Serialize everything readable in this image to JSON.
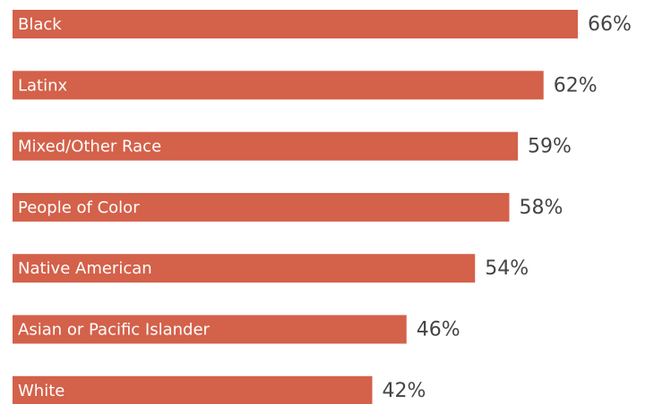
{
  "chart_data": {
    "type": "bar",
    "orientation": "horizontal",
    "categories": [
      "Black",
      "Latinx",
      "Mixed/Other Race",
      "People of Color",
      "Native American",
      "Asian or Pacific Islander",
      "White"
    ],
    "values": [
      66,
      62,
      59,
      58,
      54,
      46,
      42
    ],
    "value_labels": [
      "66%",
      "62%",
      "59%",
      "58%",
      "54%",
      "46%",
      "42%"
    ],
    "color": "#d4614a"
  }
}
